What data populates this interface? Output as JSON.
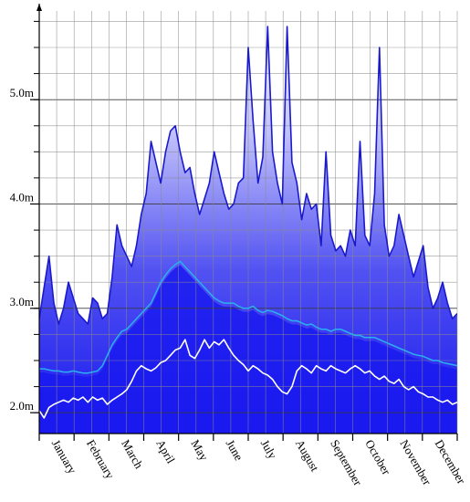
{
  "chart_data": {
    "type": "area",
    "title": "",
    "xlabel": "",
    "ylabel": "",
    "ylim": [
      1.8,
      5.85
    ],
    "grid": true,
    "yticks": [
      {
        "value": 2.0,
        "label": "2.0m"
      },
      {
        "value": 3.0,
        "label": "3.0m"
      },
      {
        "value": 4.0,
        "label": "4.0m"
      },
      {
        "value": 5.0,
        "label": "5.0m"
      }
    ],
    "months": [
      "January",
      "February",
      "March",
      "April",
      "May",
      "June",
      "July",
      "August",
      "September",
      "October",
      "November",
      "December"
    ],
    "series": [
      {
        "role": "maximum",
        "color": "#1a1acc",
        "values": [
          2.9,
          3.2,
          3.5,
          3.05,
          2.85,
          3.0,
          3.25,
          3.1,
          2.95,
          2.9,
          2.85,
          3.1,
          3.05,
          2.9,
          2.95,
          3.3,
          3.8,
          3.6,
          3.5,
          3.4,
          3.6,
          3.9,
          4.1,
          4.6,
          4.4,
          4.2,
          4.5,
          4.7,
          4.75,
          4.5,
          4.3,
          4.35,
          4.1,
          3.9,
          4.05,
          4.2,
          4.5,
          4.3,
          4.1,
          3.95,
          4.0,
          4.2,
          4.25,
          5.5,
          4.8,
          4.2,
          4.45,
          5.7,
          4.5,
          4.2,
          4.0,
          5.7,
          4.4,
          4.2,
          3.85,
          4.1,
          3.95,
          4.0,
          3.6,
          4.5,
          3.7,
          3.55,
          3.6,
          3.5,
          3.75,
          3.6,
          4.6,
          3.7,
          3.6,
          4.1,
          5.5,
          3.8,
          3.5,
          3.6,
          3.9,
          3.7,
          3.5,
          3.3,
          3.45,
          3.6,
          3.2,
          3.0,
          3.1,
          3.25,
          3.05,
          2.9,
          2.95
        ]
      },
      {
        "role": "mean",
        "color": "#2ab0f0",
        "values": [
          2.42,
          2.42,
          2.41,
          2.4,
          2.4,
          2.39,
          2.39,
          2.4,
          2.39,
          2.38,
          2.38,
          2.39,
          2.4,
          2.45,
          2.55,
          2.65,
          2.72,
          2.78,
          2.8,
          2.85,
          2.9,
          2.95,
          3.0,
          3.05,
          3.15,
          3.25,
          3.32,
          3.38,
          3.42,
          3.45,
          3.4,
          3.35,
          3.3,
          3.25,
          3.2,
          3.15,
          3.1,
          3.07,
          3.05,
          3.05,
          3.05,
          3.02,
          3.0,
          3.0,
          3.02,
          2.98,
          2.96,
          2.98,
          2.97,
          2.95,
          2.93,
          2.9,
          2.88,
          2.88,
          2.86,
          2.84,
          2.85,
          2.82,
          2.8,
          2.8,
          2.78,
          2.8,
          2.8,
          2.78,
          2.76,
          2.74,
          2.74,
          2.72,
          2.72,
          2.72,
          2.7,
          2.68,
          2.66,
          2.64,
          2.62,
          2.6,
          2.58,
          2.56,
          2.55,
          2.54,
          2.52,
          2.5,
          2.5,
          2.48,
          2.47,
          2.46,
          2.45
        ]
      },
      {
        "role": "minimum",
        "color": "#ffffff",
        "values": [
          2.02,
          1.95,
          2.05,
          2.08,
          2.1,
          2.12,
          2.1,
          2.14,
          2.12,
          2.15,
          2.1,
          2.15,
          2.12,
          2.14,
          2.08,
          2.12,
          2.15,
          2.18,
          2.22,
          2.3,
          2.4,
          2.45,
          2.42,
          2.4,
          2.43,
          2.48,
          2.5,
          2.55,
          2.6,
          2.62,
          2.7,
          2.55,
          2.52,
          2.6,
          2.7,
          2.62,
          2.68,
          2.65,
          2.7,
          2.62,
          2.55,
          2.5,
          2.46,
          2.4,
          2.45,
          2.42,
          2.38,
          2.36,
          2.32,
          2.25,
          2.2,
          2.18,
          2.25,
          2.4,
          2.45,
          2.42,
          2.38,
          2.45,
          2.42,
          2.4,
          2.45,
          2.42,
          2.4,
          2.38,
          2.42,
          2.45,
          2.42,
          2.38,
          2.4,
          2.35,
          2.32,
          2.35,
          2.3,
          2.28,
          2.32,
          2.25,
          2.22,
          2.25,
          2.2,
          2.18,
          2.15,
          2.15,
          2.12,
          2.1,
          2.12,
          2.08,
          2.1
        ]
      }
    ]
  }
}
